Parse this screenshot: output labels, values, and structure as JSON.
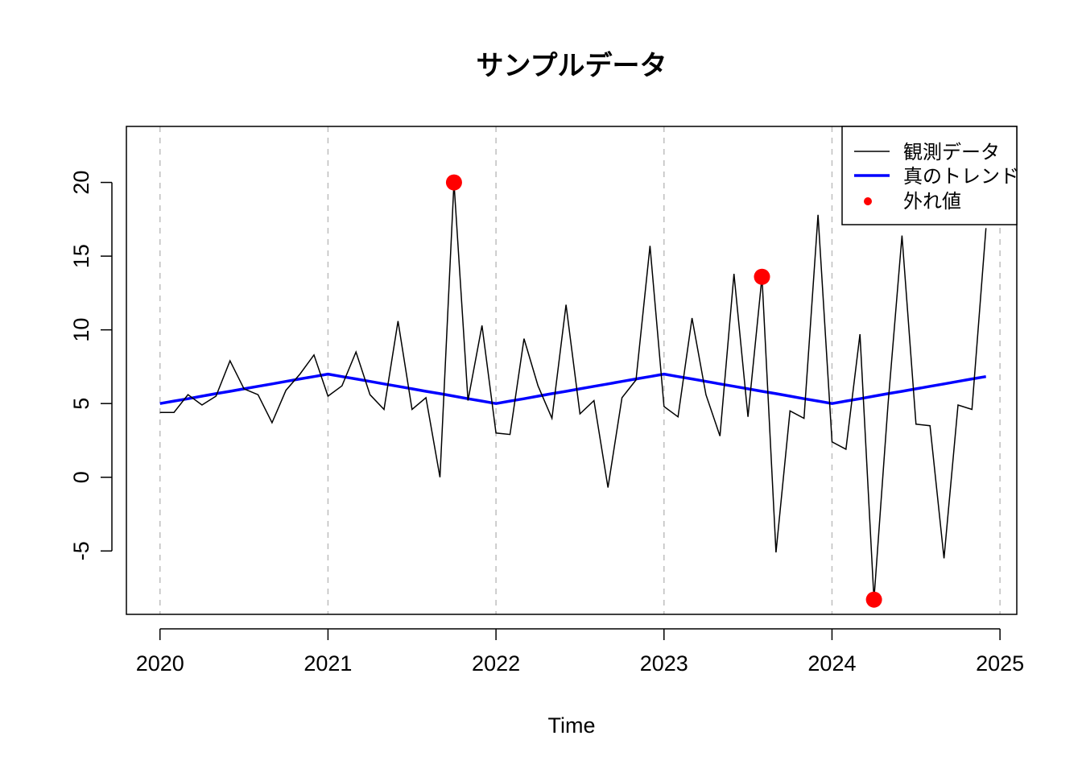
{
  "chart_data": {
    "type": "line",
    "title": "サンプルデータ",
    "xlabel": "Time",
    "ylabel": "",
    "x_ticks": [
      2020,
      2021,
      2022,
      2023,
      2024,
      2025
    ],
    "y_ticks": [
      -5,
      0,
      5,
      10,
      15,
      20
    ],
    "xlim": [
      2019.8,
      2025.1
    ],
    "ylim": [
      -9.3,
      23.8
    ],
    "grid": "vertical dashed at x ticks",
    "legend_position": "top-right",
    "colors": {
      "observed": "#000000",
      "trend": "#0000ff",
      "outliers": "#ff0000",
      "grid": "#bebebe"
    },
    "series": [
      {
        "name": "観測データ",
        "kind": "line",
        "x": [
          2020.0,
          2020.0833,
          2020.1667,
          2020.25,
          2020.3333,
          2020.4167,
          2020.5,
          2020.5833,
          2020.6667,
          2020.75,
          2020.8333,
          2020.9167,
          2021.0,
          2021.0833,
          2021.1667,
          2021.25,
          2021.3333,
          2021.4167,
          2021.5,
          2021.5833,
          2021.6667,
          2021.75,
          2021.8333,
          2021.9167,
          2022.0,
          2022.0833,
          2022.1667,
          2022.25,
          2022.3333,
          2022.4167,
          2022.5,
          2022.5833,
          2022.6667,
          2022.75,
          2022.8333,
          2022.9167,
          2023.0,
          2023.0833,
          2023.1667,
          2023.25,
          2023.3333,
          2023.4167,
          2023.5,
          2023.5833,
          2023.6667,
          2023.75,
          2023.8333,
          2023.9167,
          2024.0,
          2024.0833,
          2024.1667,
          2024.25,
          2024.3333,
          2024.4167,
          2024.5,
          2024.5833,
          2024.6667,
          2024.75,
          2024.8333,
          2024.9167
        ],
        "values": [
          4.4,
          4.4,
          5.6,
          4.9,
          5.5,
          7.9,
          6.0,
          5.6,
          3.7,
          5.9,
          7.0,
          8.3,
          5.5,
          6.2,
          8.5,
          5.6,
          4.6,
          10.6,
          4.6,
          5.4,
          0.0,
          20.0,
          5.2,
          10.3,
          3.0,
          2.9,
          9.4,
          6.2,
          4.0,
          11.7,
          4.3,
          5.2,
          -0.7,
          5.4,
          6.6,
          15.7,
          4.8,
          4.1,
          10.8,
          5.6,
          2.8,
          13.8,
          4.1,
          13.6,
          -5.1,
          4.5,
          4.0,
          17.8,
          2.4,
          1.9,
          9.7,
          -8.3,
          4.9,
          16.4,
          3.6,
          3.5,
          -5.5,
          4.9,
          4.6,
          16.9
        ]
      },
      {
        "name": "真のトレンド",
        "kind": "line",
        "x": [
          2020.0,
          2020.0833,
          2020.1667,
          2020.25,
          2020.3333,
          2020.4167,
          2020.5,
          2020.5833,
          2020.6667,
          2020.75,
          2020.8333,
          2020.9167,
          2021.0,
          2021.0833,
          2021.1667,
          2021.25,
          2021.3333,
          2021.4167,
          2021.5,
          2021.5833,
          2021.6667,
          2021.75,
          2021.8333,
          2021.9167,
          2022.0,
          2022.0833,
          2022.1667,
          2022.25,
          2022.3333,
          2022.4167,
          2022.5,
          2022.5833,
          2022.6667,
          2022.75,
          2022.8333,
          2022.9167,
          2023.0,
          2023.0833,
          2023.1667,
          2023.25,
          2023.3333,
          2023.4167,
          2023.5,
          2023.5833,
          2023.6667,
          2023.75,
          2023.8333,
          2023.9167,
          2024.0,
          2024.0833,
          2024.1667,
          2024.25,
          2024.3333,
          2024.4167,
          2024.5,
          2024.5833,
          2024.6667,
          2024.75,
          2024.8333,
          2024.9167
        ],
        "values": [
          5.0,
          5.17,
          5.33,
          5.5,
          5.67,
          5.83,
          6.0,
          6.17,
          6.33,
          6.5,
          6.67,
          6.83,
          7.0,
          6.83,
          6.67,
          6.5,
          6.33,
          6.17,
          6.0,
          5.83,
          5.67,
          5.5,
          5.33,
          5.17,
          5.0,
          5.17,
          5.33,
          5.5,
          5.67,
          5.83,
          6.0,
          6.17,
          6.33,
          6.5,
          6.67,
          6.83,
          7.0,
          6.83,
          6.67,
          6.5,
          6.33,
          6.17,
          6.0,
          5.83,
          5.67,
          5.5,
          5.33,
          5.17,
          5.0,
          5.17,
          5.33,
          5.5,
          5.67,
          5.83,
          6.0,
          6.17,
          6.33,
          6.5,
          6.67,
          6.83
        ]
      },
      {
        "name": "外れ値",
        "kind": "points",
        "x": [
          2021.75,
          2023.5833,
          2024.25
        ],
        "values": [
          20.0,
          13.6,
          -8.3
        ]
      }
    ]
  }
}
